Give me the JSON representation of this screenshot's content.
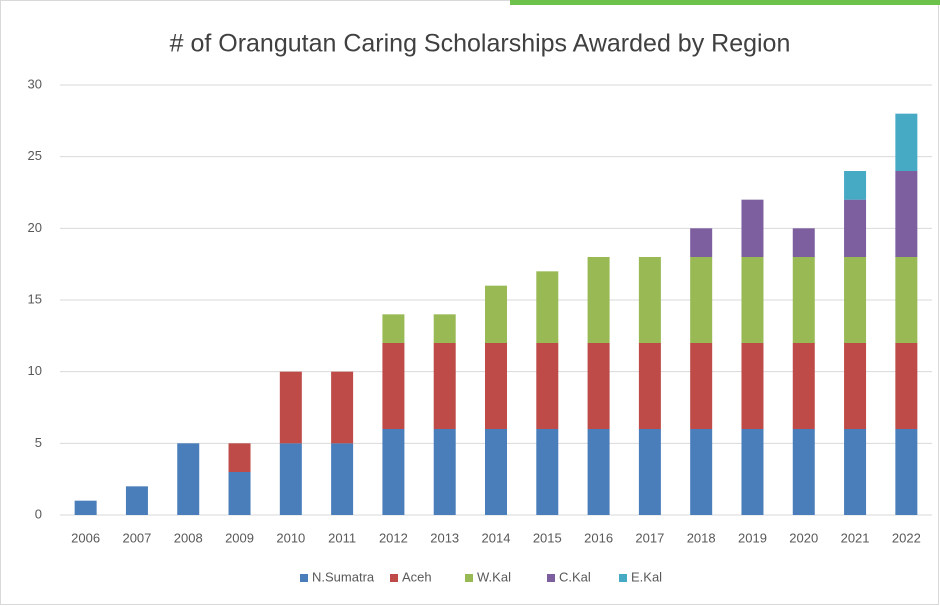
{
  "chart_data": {
    "type": "stacked_bar",
    "title": "# of Orangutan Caring Scholarships Awarded by Region",
    "categories": [
      "2006",
      "2007",
      "2008",
      "2009",
      "2010",
      "2011",
      "2012",
      "2013",
      "2014",
      "2015",
      "2016",
      "2017",
      "2018",
      "2019",
      "2020",
      "2021",
      "2022"
    ],
    "series": [
      {
        "name": "N.Sumatra",
        "color": "#4a7ebb",
        "values": [
          1,
          2,
          5,
          3,
          5,
          5,
          6,
          6,
          6,
          6,
          6,
          6,
          6,
          6,
          6,
          6,
          6
        ]
      },
      {
        "name": "Aceh",
        "color": "#be4b48",
        "values": [
          0,
          0,
          0,
          2,
          5,
          5,
          6,
          6,
          6,
          6,
          6,
          6,
          6,
          6,
          6,
          6,
          6
        ]
      },
      {
        "name": "W.Kal",
        "color": "#98b954",
        "values": [
          0,
          0,
          0,
          0,
          0,
          0,
          2,
          2,
          4,
          5,
          6,
          6,
          6,
          6,
          6,
          6,
          6
        ]
      },
      {
        "name": "C.Kal",
        "color": "#7d5fa0",
        "values": [
          0,
          0,
          0,
          0,
          0,
          0,
          0,
          0,
          0,
          0,
          0,
          0,
          2,
          4,
          2,
          4,
          6
        ]
      },
      {
        "name": "E.Kal",
        "color": "#46aac5",
        "values": [
          0,
          0,
          0,
          0,
          0,
          0,
          0,
          0,
          0,
          0,
          0,
          0,
          0,
          0,
          0,
          2,
          4
        ]
      }
    ],
    "ylim": [
      0,
      30
    ],
    "yticks": [
      0,
      5,
      10,
      15,
      20,
      25,
      30
    ],
    "grid": true,
    "legend": "bottom"
  }
}
